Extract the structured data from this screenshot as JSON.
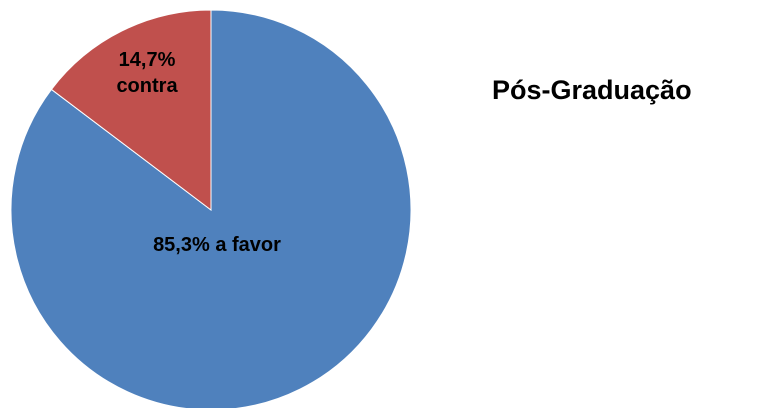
{
  "chart_data": {
    "type": "pie",
    "title": "Pós-Graduação",
    "slices": [
      {
        "label_lines": [
          "85,3% a favor"
        ],
        "value": 85.3,
        "color": "#4F81BD"
      },
      {
        "label_lines": [
          "14,7%",
          "contra"
        ],
        "value": 14.7,
        "color": "#C0504D"
      }
    ],
    "legend": "none"
  }
}
